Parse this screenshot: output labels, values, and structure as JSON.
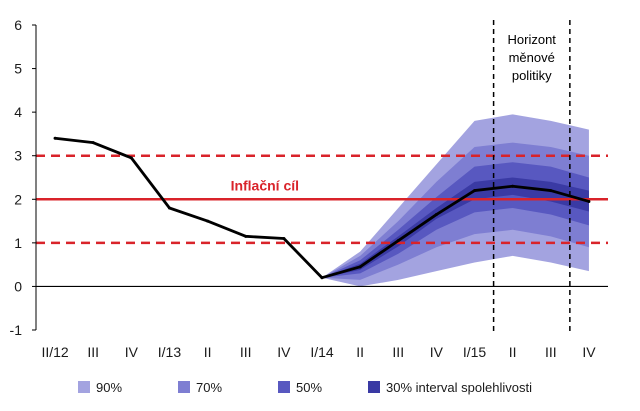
{
  "chart_data": {
    "type": "line",
    "x_categories": [
      "II/12",
      "III",
      "IV",
      "I/13",
      "II",
      "III",
      "IV",
      "I/14",
      "II",
      "III",
      "IV",
      "I/15",
      "II",
      "III",
      "IV"
    ],
    "ylim": [
      -1,
      6
    ],
    "yticks": [
      -1,
      0,
      1,
      2,
      3,
      4,
      5,
      6
    ],
    "grid": false,
    "legend_position": "bottom",
    "series": [
      {
        "values": [
          3.4,
          3.3,
          2.95,
          1.8,
          1.5,
          1.15,
          1.1,
          0.2,
          0.45,
          1.05,
          1.65,
          2.2,
          2.3,
          2.2,
          1.95
        ],
        "color": "#000000"
      }
    ],
    "fan": {
      "start_index": 7,
      "bands": [
        {
          "name": "90%",
          "lower": [
            0.2,
            0.0,
            0.15,
            0.35,
            0.55,
            0.7,
            0.55,
            0.35
          ],
          "upper": [
            0.2,
            0.8,
            1.8,
            2.8,
            3.8,
            3.95,
            3.8,
            3.6
          ],
          "color": "#a3a3e0"
        },
        {
          "name": "70%",
          "lower": [
            0.2,
            0.15,
            0.5,
            0.9,
            1.2,
            1.3,
            1.15,
            0.9
          ],
          "upper": [
            0.2,
            0.7,
            1.5,
            2.4,
            3.2,
            3.3,
            3.2,
            3.0
          ],
          "color": "#7e7ed2"
        },
        {
          "name": "50%",
          "lower": [
            0.2,
            0.3,
            0.75,
            1.3,
            1.7,
            1.8,
            1.65,
            1.4
          ],
          "upper": [
            0.2,
            0.6,
            1.3,
            2.05,
            2.75,
            2.85,
            2.75,
            2.5
          ],
          "color": "#5858c0"
        },
        {
          "name": "30% interval spolehlivosti",
          "lower": [
            0.2,
            0.38,
            0.92,
            1.55,
            2.0,
            2.1,
            1.95,
            1.72
          ],
          "upper": [
            0.2,
            0.52,
            1.15,
            1.8,
            2.4,
            2.5,
            2.4,
            2.2
          ],
          "color": "#3a3aa4"
        }
      ]
    },
    "target": {
      "label": "Inflační cíl",
      "value": 2,
      "lower": 1,
      "upper": 3,
      "color": "#d9232a"
    },
    "horizon": {
      "label_lines": [
        "Horizont",
        "měnové",
        "politiky"
      ],
      "from_index": 11.5,
      "to_index": 13.5
    }
  }
}
